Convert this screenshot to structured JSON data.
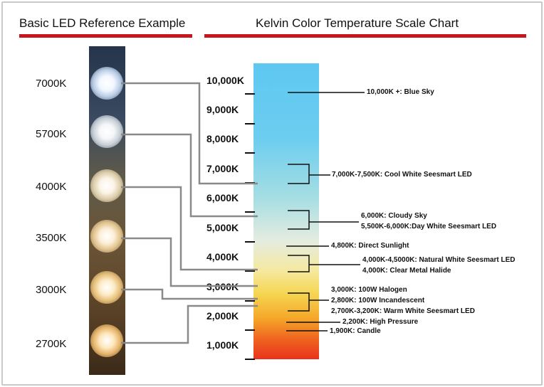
{
  "headers": {
    "left": "Basic LED Reference Example",
    "right": "Kelvin Color Temperature Scale Chart"
  },
  "colors": {
    "accent_bar": "#c8161d",
    "connector_line": "#8a8a8a",
    "bracket_line": "#111111"
  },
  "strip_labels": [
    "7000K",
    "5700K",
    "4000K",
    "3500K",
    "3000K",
    "2700K"
  ],
  "kelvin_labels": [
    "10,000K",
    "9,000K",
    "8,000K",
    "7,000K",
    "6,000K",
    "5,000K",
    "4,000K",
    "3,000K",
    "2,000K",
    "1,000K"
  ],
  "annotations": [
    "10,000K +: Blue Sky",
    "7,000K-7,500K: Cool White Seesmart LED",
    "6,000K: Cloudy Sky",
    "5,500K-6,000K:Day White Seesmart LED",
    "4,800K: Direct Sunlight",
    "4,000K-4,5000K: Natural White Seesmart LED",
    "4,000K: Clear Metal Halide",
    "3,000K: 100W Halogen",
    "2,800K: 100W Incandescent",
    "2,700K-3,200K: Warm White Seesmart LED",
    "2,200K: High Pressure",
    "1,900K: Candle"
  ]
}
